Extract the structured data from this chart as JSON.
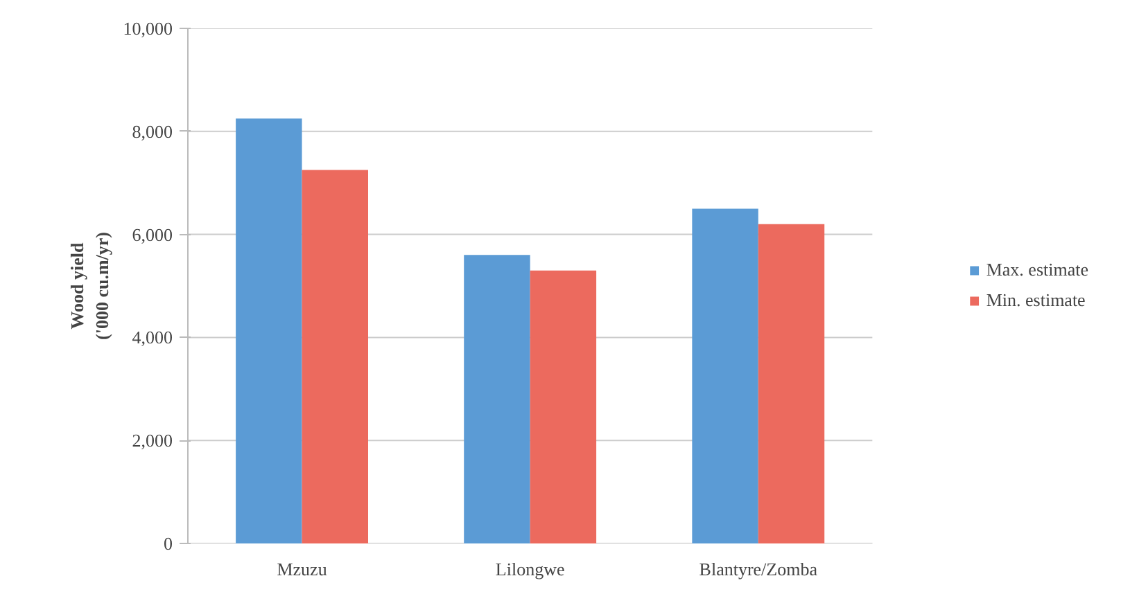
{
  "chart_data": {
    "type": "bar",
    "ylabel": "Wood yield\n('000 cu.m/yr)",
    "categories": [
      "Mzuzu",
      "Lilongwe",
      "Blantyre/Zomba"
    ],
    "series": [
      {
        "name": "Max. estimate",
        "color": "#5b9bd5",
        "values": [
          8250,
          5600,
          6500
        ]
      },
      {
        "name": "Min. estimate",
        "color": "#ec6a5e",
        "values": [
          7250,
          5300,
          6200
        ]
      }
    ],
    "ylim": [
      0,
      10000
    ],
    "yticks": [
      {
        "value": 0,
        "label": "0"
      },
      {
        "value": 2000,
        "label": "2,000"
      },
      {
        "value": 4000,
        "label": "4,000"
      },
      {
        "value": 6000,
        "label": "6,000"
      },
      {
        "value": 8000,
        "label": "8,000"
      },
      {
        "value": 10000,
        "label": "10,000"
      }
    ],
    "grid": "y",
    "legend": "right"
  }
}
